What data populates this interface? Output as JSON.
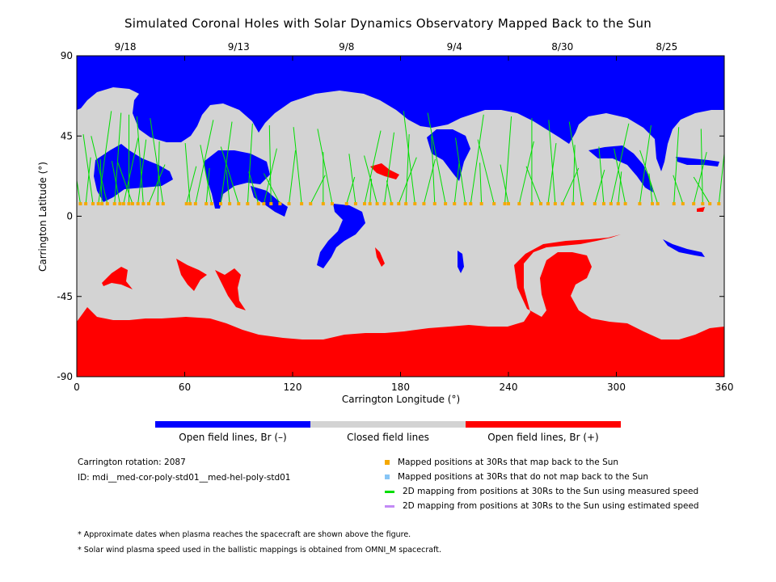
{
  "title": "Simulated Coronal Holes with Solar Dynamics Observatory Mapped Back to the Sun",
  "chart_data": {
    "type": "heatmap",
    "xlabel": "Carrington Longitude (°)",
    "ylabel": "Carrington Latitude (°)",
    "xlim": [
      0,
      360
    ],
    "ylim": [
      -90,
      90
    ],
    "x_ticks": [
      0,
      60,
      120,
      180,
      240,
      300,
      360
    ],
    "y_ticks": [
      90,
      45,
      0,
      -45,
      -90
    ],
    "y_tick_labels": [
      "90",
      "45",
      "0",
      "-45",
      "-90"
    ],
    "top_axis_dates": [
      {
        "label": "9/18",
        "lon": 27
      },
      {
        "label": "9/13",
        "lon": 90
      },
      {
        "label": "9/8",
        "lon": 150
      },
      {
        "label": "9/4",
        "lon": 210
      },
      {
        "label": "8/30",
        "lon": 270
      },
      {
        "label": "8/25",
        "lon": 328
      }
    ],
    "mapped_latitude": 7,
    "mapped_longitudes": [
      2,
      5,
      9,
      12,
      14,
      17,
      21,
      24,
      26,
      29,
      31,
      34,
      37,
      40,
      45,
      48,
      61,
      63,
      66,
      72,
      75,
      80,
      85,
      90,
      95,
      101,
      104,
      108,
      113,
      118,
      125,
      130,
      137,
      142,
      150,
      155,
      160,
      163,
      167,
      171,
      175,
      179,
      183,
      188,
      193,
      199,
      205,
      210,
      216,
      219,
      225,
      232,
      238,
      240,
      246,
      253,
      258,
      262,
      266,
      270,
      276,
      281,
      288,
      293,
      297,
      301,
      305,
      313,
      320,
      323,
      332,
      337,
      343,
      348,
      352,
      357
    ],
    "colorbar": [
      {
        "label": "Open field lines, Br (–)",
        "color": "#0000ff"
      },
      {
        "label": "Closed field lines",
        "color": "#d3d3d3"
      },
      {
        "label": "Open field lines, Br (+)",
        "color": "#ff0000"
      }
    ]
  },
  "info": {
    "carrington_rotation": "Carrington rotation: 2087",
    "model_id": "ID: mdi__med-cor-poly-std01__med-hel-poly-std01"
  },
  "legend": [
    {
      "label": "Mapped positions at 30Rs that map back to the Sun",
      "color": "#f5a800",
      "kind": "square"
    },
    {
      "label": "Mapped positions at 30Rs that do not map back to the Sun",
      "color": "#87c5f5",
      "kind": "square"
    },
    {
      "label": "2D mapping from positions at 30Rs to the Sun using measured speed",
      "color": "#00dd00",
      "kind": "line"
    },
    {
      "label": "2D mapping from positions at 30Rs to the Sun using estimated speed",
      "color": "#c28af5",
      "kind": "line"
    }
  ],
  "notes": [
    "* Approximate dates when plasma reaches the spacecraft are shown above the figure.",
    "* Solar wind plasma speed used in the ballistic mappings is obtained from OMNI_M spacecraft."
  ]
}
